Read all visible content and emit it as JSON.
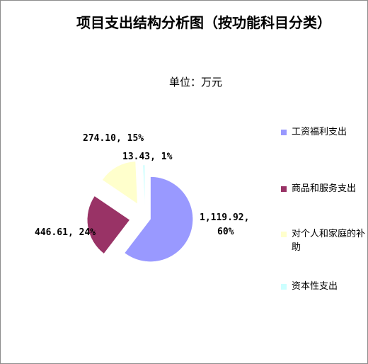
{
  "chart_data": {
    "type": "pie",
    "title": "项目支出结构分析图（按功能科目分类）",
    "subtitle": "单位：万元",
    "exploded": true,
    "legend_position": "right",
    "slices": [
      {
        "name": "工资福利支出",
        "value": 1119.92,
        "value_label": "1,119.92",
        "percent_label": "60%",
        "color": "#9999ff"
      },
      {
        "name": "商品和服务支出",
        "value": 446.61,
        "value_label": "446.61",
        "percent_label": "24%",
        "color": "#993366"
      },
      {
        "name": "对个人和家庭的补助",
        "value": 274.1,
        "value_label": "274.10",
        "percent_label": "15%",
        "color": "#ffffcc"
      },
      {
        "name": "资本性支出",
        "value": 13.43,
        "value_label": "13.43",
        "percent_label": "1%",
        "color": "#ccffff"
      }
    ]
  }
}
